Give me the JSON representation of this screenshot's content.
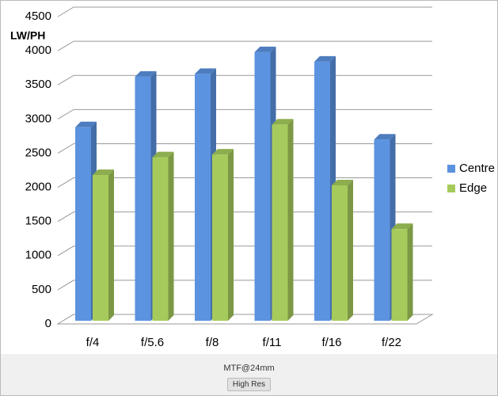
{
  "chart_data": {
    "type": "bar3d",
    "y_label": "LW/PH",
    "categories": [
      "f/4",
      "f/5.6",
      "f/8",
      "f/11",
      "f/16",
      "f/22"
    ],
    "series": [
      {
        "name": "Centre",
        "color": "#5b93e0",
        "values": [
          2880,
          3620,
          3660,
          3980,
          3840,
          2700
        ]
      },
      {
        "name": "Edge",
        "color": "#a6cb5c",
        "values": [
          2180,
          2440,
          2480,
          2920,
          2030,
          1390
        ]
      }
    ],
    "ylim": [
      0,
      4500
    ],
    "yticks": [
      0,
      500,
      1000,
      1500,
      2000,
      2500,
      3000,
      3500,
      4000,
      4500
    ],
    "grid": true,
    "legend": "right"
  },
  "footer": {
    "caption": "MTF@24mm",
    "button": "High Res"
  }
}
